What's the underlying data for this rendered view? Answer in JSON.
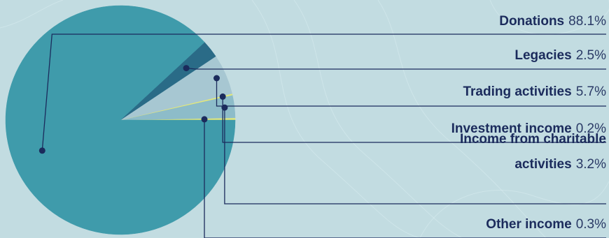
{
  "chart_data": {
    "type": "pie",
    "title": "",
    "slices": [
      {
        "label_lines": [
          "Donations"
        ],
        "value_text": "88.1%",
        "value": 88.1,
        "color": "#3f9bab"
      },
      {
        "label_lines": [
          "Legacies"
        ],
        "value_text": "2.5%",
        "value": 2.5,
        "color": "#2a6b87"
      },
      {
        "label_lines": [
          "Trading activities"
        ],
        "value_text": "5.7%",
        "value": 5.7,
        "color": "#a7c7d2"
      },
      {
        "label_lines": [
          "Investment income"
        ],
        "value_text": "0.2%",
        "value": 0.2,
        "color": "#e4e87a"
      },
      {
        "label_lines": [
          "Income from charitable",
          "activities"
        ],
        "value_text": "3.2%",
        "value": 3.2,
        "color": "#8dbcc9"
      },
      {
        "label_lines": [
          "Other income"
        ],
        "value_text": "0.3%",
        "value": 0.3,
        "color": "#e4e87a"
      }
    ],
    "colors": {
      "background": "#c2dce1",
      "leader": "#1b2b5c",
      "label": "#1b2b5c"
    },
    "legend": "right"
  }
}
